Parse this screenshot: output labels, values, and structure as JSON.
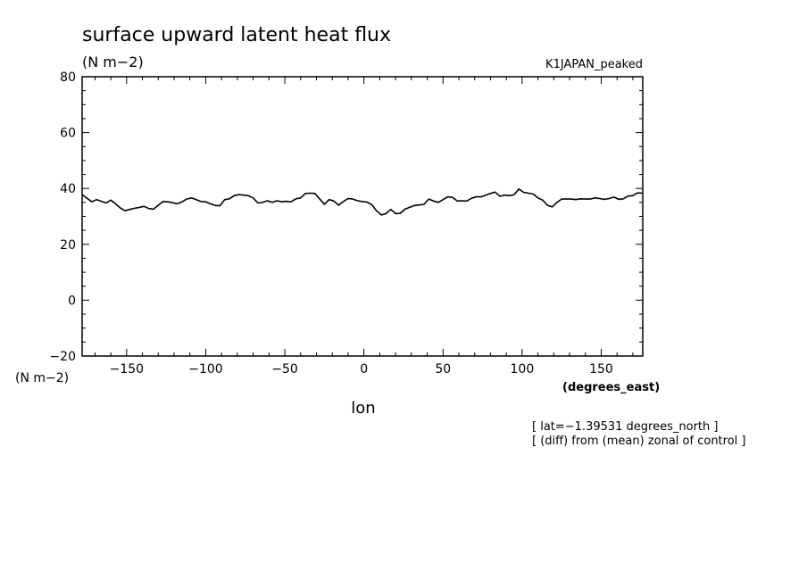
{
  "chart_data": {
    "type": "line",
    "title": "surface upward latent heat flux",
    "units_label": "(N m−2)",
    "run_label": "K1JAPAN_peaked",
    "ylabel": "(N m−2)",
    "xlabel": "lon",
    "x_units": "(degrees_east)",
    "xlim": [
      -178.125,
      176.25
    ],
    "ylim": [
      -20,
      80
    ],
    "xticks": [
      -150,
      -100,
      -50,
      0,
      50,
      100,
      150
    ],
    "xtick_labels": [
      "−150",
      "−100",
      "−50",
      "0",
      "50",
      "100",
      "150"
    ],
    "yticks": [
      -20,
      0,
      20,
      40,
      60,
      80
    ],
    "ytick_labels": [
      "−20",
      "0",
      "20",
      "40",
      "60",
      "80"
    ],
    "notes": [
      "[ lat=−1.39531 degrees_north ]",
      "[ (diff) from (mean) zonal of control ]"
    ],
    "series": [
      {
        "color": "#000000",
        "x": [
          -178,
          -175,
          -172,
          -169,
          -166,
          -163,
          -160,
          -157,
          -154,
          -151,
          -148,
          -145,
          -142,
          -139,
          -136,
          -133,
          -130,
          -127,
          -124,
          -121,
          -118,
          -115,
          -112,
          -109,
          -106,
          -103,
          -100,
          -97,
          -94,
          -91,
          -88,
          -85,
          -82,
          -79,
          -76,
          -73,
          -70,
          -67,
          -64,
          -61,
          -58,
          -55,
          -52,
          -49,
          -46,
          -43,
          -40,
          -37,
          -34,
          -31,
          -28,
          -25,
          -22,
          -19,
          -16,
          -13,
          -10,
          -7,
          -4,
          -1,
          2,
          5,
          8,
          11,
          14,
          17,
          20,
          23,
          26,
          29,
          32,
          35,
          38,
          41,
          44,
          47,
          50,
          53,
          56,
          59,
          62,
          65,
          68,
          71,
          74,
          77,
          80,
          83,
          86,
          89,
          92,
          95,
          98,
          101,
          104,
          107,
          110,
          113,
          116,
          119,
          122,
          125,
          128,
          131,
          134,
          137,
          140,
          143,
          146,
          149,
          152,
          155,
          158,
          161,
          164,
          167,
          170,
          173,
          176
        ],
        "y": [
          37.8,
          36.5,
          35.2,
          36.0,
          35.4,
          34.8,
          35.8,
          34.5,
          33.0,
          32.0,
          32.5,
          32.9,
          33.2,
          33.6,
          32.8,
          32.6,
          34.0,
          35.3,
          35.2,
          34.9,
          34.5,
          35.2,
          36.2,
          36.6,
          36.0,
          35.3,
          35.2,
          34.5,
          33.9,
          33.8,
          36.0,
          36.3,
          37.4,
          37.8,
          37.6,
          37.4,
          36.6,
          34.8,
          35.0,
          35.6,
          35.0,
          35.6,
          35.2,
          35.4,
          35.2,
          36.3,
          36.6,
          38.2,
          38.3,
          38.2,
          36.3,
          34.3,
          36.0,
          35.5,
          34.0,
          35.3,
          36.4,
          36.2,
          35.6,
          35.3,
          35.1,
          34.2,
          32.0,
          30.5,
          31.0,
          32.5,
          31.0,
          31.1,
          32.6,
          33.3,
          33.9,
          34.1,
          34.3,
          36.2,
          35.5,
          35.0,
          36.0,
          37.0,
          36.8,
          35.5,
          35.6,
          35.5,
          36.5,
          37.0,
          37.0,
          37.6,
          38.2,
          38.7,
          37.2,
          37.6,
          37.4,
          37.8,
          39.8,
          38.6,
          38.3,
          38.0,
          36.6,
          35.8,
          34.0,
          33.4,
          35.0,
          36.2,
          36.2,
          36.2,
          36.0,
          36.3,
          36.2,
          36.2,
          36.6,
          36.4,
          36.1,
          36.4,
          36.9,
          36.1,
          36.3,
          37.3,
          37.4,
          38.4,
          38.3
        ]
      }
    ]
  }
}
